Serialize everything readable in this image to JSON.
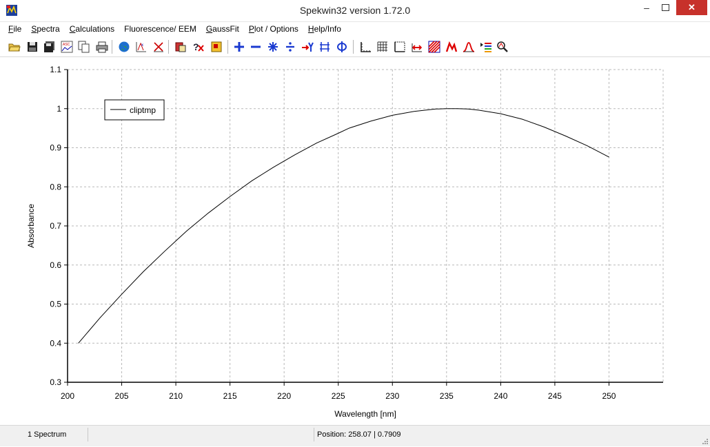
{
  "window": {
    "title": "Spekwin32 version 1.72.0",
    "minimize_glyph": "–",
    "close_glyph": "✕"
  },
  "menu": {
    "items": [
      {
        "name": "file",
        "u": "F",
        "rest": "ile"
      },
      {
        "name": "spectra",
        "u": "S",
        "rest": "pectra"
      },
      {
        "name": "calculations",
        "u": "C",
        "rest": "alculations"
      },
      {
        "name": "fluorescence-eem",
        "u": "",
        "rest": "Fluorescence/ EEM"
      },
      {
        "name": "gaussfit",
        "u": "G",
        "rest": "aussFit"
      },
      {
        "name": "plot-options",
        "u": "P",
        "rest": "lot / Options"
      },
      {
        "name": "help-info",
        "u": "H",
        "rest": "elp/Info"
      }
    ]
  },
  "toolbar": {
    "icons": [
      "open-folder-icon",
      "save-icon",
      "save-all-icon",
      "export-ascii-icon",
      "copy-icon",
      "print-icon",
      "web-globe-icon",
      "peak-pick-icon",
      "cut-spectrum-icon",
      "stop-macro-icon",
      "delete-spectrum-icon",
      "edit-spectrum-icon",
      "add-spectra-icon",
      "subtract-spectra-icon",
      "multiply-spectra-icon",
      "divide-spectra-icon",
      "shift-spectrum-icon",
      "normalize-icon",
      "phi-icon",
      "axes-icon",
      "grid-icon",
      "frame-icon",
      "zoom-range-icon",
      "hatch-fill-icon",
      "red-peak-icon",
      "peak-outline-icon",
      "legend-list-icon",
      "zoom-magnifier-icon"
    ]
  },
  "chart_data": {
    "type": "line",
    "xlabel": "Wavelength [nm]",
    "ylabel": "Absorbance",
    "xlim": [
      200,
      255
    ],
    "ylim": [
      0.3,
      1.1
    ],
    "xticks": [
      200,
      205,
      210,
      215,
      220,
      225,
      230,
      235,
      240,
      245,
      250
    ],
    "yticks": [
      0.3,
      0.4,
      0.5,
      0.6,
      0.7,
      0.8,
      0.9,
      1.0,
      1.1
    ],
    "grid": true,
    "legend_position": "top-left",
    "series": [
      {
        "name": "cliptmp",
        "color": "#000000",
        "x": [
          201,
          203,
          205,
          207,
          209,
          211,
          213,
          215,
          217,
          219,
          221,
          223,
          225,
          226,
          228,
          230,
          232,
          234,
          235,
          236,
          237,
          238,
          240,
          242,
          244,
          246,
          248,
          250
        ],
        "y": [
          0.4,
          0.465,
          0.525,
          0.583,
          0.636,
          0.687,
          0.733,
          0.775,
          0.815,
          0.85,
          0.882,
          0.912,
          0.937,
          0.95,
          0.968,
          0.983,
          0.993,
          0.999,
          1.0,
          1.0,
          0.999,
          0.996,
          0.987,
          0.973,
          0.953,
          0.93,
          0.905,
          0.876
        ]
      }
    ]
  },
  "status": {
    "spectrum_count": "1 Spectrum",
    "position": "Position: 258.07  |  0.7909"
  }
}
